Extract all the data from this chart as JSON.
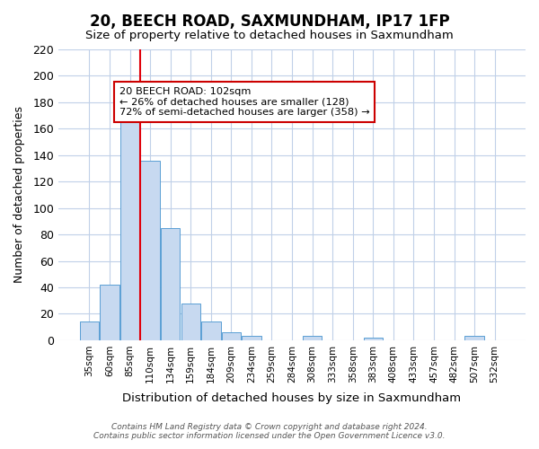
{
  "title": "20, BEECH ROAD, SAXMUNDHAM, IP17 1FP",
  "subtitle": "Size of property relative to detached houses in Saxmundham",
  "xlabel": "Distribution of detached houses by size in Saxmundham",
  "ylabel": "Number of detached properties",
  "bin_labels": [
    "35sqm",
    "60sqm",
    "85sqm",
    "110sqm",
    "134sqm",
    "159sqm",
    "184sqm",
    "209sqm",
    "234sqm",
    "259sqm",
    "284sqm",
    "308sqm",
    "333sqm",
    "358sqm",
    "383sqm",
    "408sqm",
    "433sqm",
    "457sqm",
    "482sqm",
    "507sqm",
    "532sqm"
  ],
  "bar_heights": [
    14,
    42,
    168,
    136,
    85,
    28,
    14,
    6,
    3,
    0,
    0,
    3,
    0,
    0,
    2,
    0,
    0,
    0,
    0,
    3,
    0
  ],
  "bar_color": "#c7d9f0",
  "bar_edge_color": "#5a9fd4",
  "vline_color": "#e0000a",
  "ylim": [
    0,
    220
  ],
  "yticks": [
    0,
    20,
    40,
    60,
    80,
    100,
    120,
    140,
    160,
    180,
    200,
    220
  ],
  "annotation_title": "20 BEECH ROAD: 102sqm",
  "annotation_line1": "← 26% of detached houses are smaller (128)",
  "annotation_line2": "72% of semi-detached houses are larger (358) →",
  "annotation_box_color": "#ffffff",
  "annotation_box_edge": "#cc0000",
  "footer_line1": "Contains HM Land Registry data © Crown copyright and database right 2024.",
  "footer_line2": "Contains public sector information licensed under the Open Government Licence v3.0.",
  "bg_color": "#ffffff",
  "grid_color": "#c0d0e8"
}
